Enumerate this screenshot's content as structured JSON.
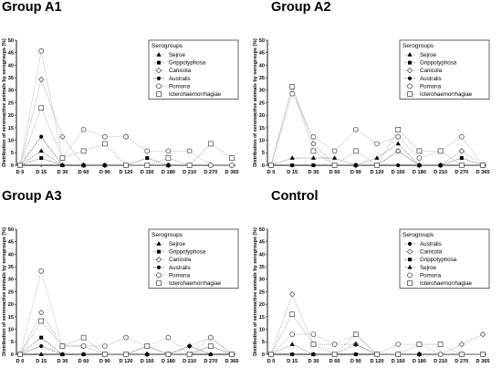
{
  "chart_data": [
    {
      "type": "line",
      "title": "Group A1",
      "ylabel": "Distribution of seroreactive animals by serogroups (%)",
      "xlabel": "",
      "categories": [
        "D 0",
        "D 15",
        "D 30",
        "D 60",
        "D 90",
        "D 120",
        "D 150",
        "D 180",
        "D 210",
        "D 270",
        "D 365"
      ],
      "ylim": [
        0,
        50
      ],
      "yticks": [
        0,
        5,
        10,
        15,
        20,
        25,
        30,
        35,
        40,
        45,
        50
      ],
      "legend_title": "Serogroups",
      "legend_position": "top-right",
      "series": [
        {
          "name": "Sejroe",
          "marker": "triangle",
          "color": "#555555",
          "values": [
            0,
            5.7,
            0,
            0,
            0,
            0,
            0,
            0,
            0,
            0,
            0
          ]
        },
        {
          "name": "Grippotyphosa",
          "marker": "square",
          "color": "#333333",
          "values": [
            0,
            2.9,
            0,
            0,
            0,
            0,
            2.9,
            0,
            0,
            0,
            0
          ]
        },
        {
          "name": "Canicola",
          "marker": "diamond-open",
          "color": "#888888",
          "values": [
            0,
            34.3,
            11.4,
            0,
            0,
            0,
            0,
            0,
            0,
            0,
            0
          ]
        },
        {
          "name": "Australis",
          "marker": "circle",
          "color": "#222222",
          "values": [
            0,
            11.4,
            0,
            0,
            0,
            0,
            0,
            0,
            0,
            0,
            0
          ]
        },
        {
          "name": "Pomona",
          "marker": "circle-open",
          "color": "#999999",
          "values": [
            0,
            45.7,
            2.9,
            14.3,
            11.4,
            11.4,
            5.7,
            5.7,
            5.7,
            0,
            0
          ]
        },
        {
          "name": "Icterohaemorrhagiae",
          "marker": "square-open",
          "color": "#888888",
          "values": [
            0,
            22.9,
            2.9,
            5.7,
            8.6,
            0,
            0,
            2.9,
            0,
            8.6,
            2.9
          ]
        }
      ]
    },
    {
      "type": "line",
      "title": "Group A2",
      "ylabel": "Distribution of seroreactive animals by serogroups (%)",
      "xlabel": "",
      "categories": [
        "D 0",
        "D 15",
        "D 30",
        "D 60",
        "D 90",
        "D 120",
        "D 150",
        "D 180",
        "D 210",
        "D 270",
        "D 365"
      ],
      "ylim": [
        0,
        50
      ],
      "yticks": [
        0,
        5,
        10,
        15,
        20,
        25,
        30,
        35,
        40,
        45,
        50
      ],
      "legend_title": "Serogroups",
      "legend_position": "top-right",
      "series": [
        {
          "name": "Sejroe",
          "marker": "triangle",
          "color": "#555555",
          "values": [
            0,
            2.9,
            2.9,
            2.9,
            0,
            2.9,
            8.6,
            0,
            0,
            0,
            0
          ]
        },
        {
          "name": "Grippotyphosa",
          "marker": "square",
          "color": "#333333",
          "values": [
            0,
            0,
            0,
            0,
            0,
            0,
            5.7,
            0,
            0,
            2.9,
            0
          ]
        },
        {
          "name": "Canicola",
          "marker": "diamond-open",
          "color": "#888888",
          "values": [
            0,
            31.4,
            8.6,
            0,
            0,
            0,
            5.7,
            0,
            0,
            5.7,
            0
          ]
        },
        {
          "name": "Australis",
          "marker": "circle",
          "color": "#222222",
          "values": [
            0,
            0,
            0,
            0,
            0,
            0,
            0,
            0,
            0,
            0,
            0
          ]
        },
        {
          "name": "Pomona",
          "marker": "circle-open",
          "color": "#999999",
          "values": [
            0,
            28.6,
            11.4,
            5.7,
            14.3,
            8.6,
            11.4,
            2.9,
            5.7,
            11.4,
            0
          ]
        },
        {
          "name": "Icterohaemorrhagiae",
          "marker": "square-open",
          "color": "#888888",
          "values": [
            0,
            31.4,
            5.7,
            0,
            5.7,
            0,
            14.3,
            5.7,
            5.7,
            0,
            0
          ]
        }
      ]
    },
    {
      "type": "line",
      "title": "Group A3",
      "ylabel": "Distribution of seroreactive animals by serogroups (%)",
      "xlabel": "",
      "categories": [
        "D 0",
        "D 15",
        "D 30",
        "D 60",
        "D 90",
        "D 120",
        "D 150",
        "D 180",
        "D 210",
        "D 270",
        "D 365"
      ],
      "ylim": [
        0,
        50
      ],
      "yticks": [
        0,
        5,
        10,
        15,
        20,
        25,
        30,
        35,
        40,
        45,
        50
      ],
      "legend_title": "Serogroups",
      "legend_position": "top-right",
      "series": [
        {
          "name": "Sejroe",
          "marker": "triangle",
          "color": "#555555",
          "values": [
            0,
            0,
            0,
            0,
            0,
            0,
            0,
            0,
            0,
            0,
            0
          ]
        },
        {
          "name": "Grippotyphosa",
          "marker": "square",
          "color": "#333333",
          "values": [
            0,
            6.7,
            0,
            0,
            0,
            0,
            3.3,
            0,
            0,
            3.3,
            0
          ]
        },
        {
          "name": "Canicola",
          "marker": "diamond-open",
          "color": "#888888",
          "values": [
            0,
            16.7,
            3.3,
            3.3,
            0,
            0,
            0,
            0,
            3.3,
            6.7,
            0
          ]
        },
        {
          "name": "Australis",
          "marker": "circle",
          "color": "#222222",
          "values": [
            0,
            3.3,
            0,
            0,
            0,
            0,
            0,
            0,
            3.3,
            0,
            0
          ]
        },
        {
          "name": "Pomona",
          "marker": "circle-open",
          "color": "#999999",
          "values": [
            0,
            33.3,
            3.3,
            3.3,
            3.3,
            6.7,
            3.3,
            6.7,
            0,
            6.7,
            0
          ]
        },
        {
          "name": "Icterohaemorrhagiae",
          "marker": "square-open",
          "color": "#888888",
          "values": [
            0,
            13.3,
            3.3,
            6.7,
            0,
            0,
            3.3,
            0,
            0,
            3.3,
            0
          ]
        }
      ]
    },
    {
      "type": "line",
      "title": "Control",
      "ylabel": "Distribution of seroreactive animals by serogroups (%)",
      "xlabel": "",
      "categories": [
        "D 0",
        "D 15",
        "D 30",
        "D 60",
        "D 90",
        "D 120",
        "D 150",
        "D 180",
        "D 210",
        "D 270",
        "D 365"
      ],
      "ylim": [
        0,
        50
      ],
      "yticks": [
        0,
        5,
        10,
        15,
        20,
        25,
        30,
        35,
        40,
        45,
        50
      ],
      "legend_title": "Serogroups",
      "legend_position": "top-right",
      "series": [
        {
          "name": "Australis",
          "marker": "circle",
          "color": "#222222",
          "values": [
            0,
            0,
            0,
            0,
            0,
            0,
            0,
            0,
            0,
            0,
            0
          ]
        },
        {
          "name": "Canicola",
          "marker": "diamond-open",
          "color": "#888888",
          "values": [
            0,
            24,
            4,
            4,
            4,
            0,
            0,
            0,
            0,
            4,
            8
          ]
        },
        {
          "name": "Grippotyphosa",
          "marker": "square",
          "color": "#333333",
          "values": [
            0,
            0,
            0,
            0,
            0,
            0,
            0,
            0,
            0,
            0,
            0
          ]
        },
        {
          "name": "Sejroe",
          "marker": "triangle",
          "color": "#555555",
          "values": [
            0,
            4,
            0,
            0,
            4,
            0,
            0,
            0,
            0,
            0,
            0
          ]
        },
        {
          "name": "Pomona",
          "marker": "circle-open",
          "color": "#999999",
          "values": [
            0,
            8,
            8,
            4,
            8,
            0,
            4,
            4,
            0,
            0,
            0
          ]
        },
        {
          "name": "Icterohaemorrhagiae",
          "marker": "square-open",
          "color": "#888888",
          "values": [
            0,
            16,
            4,
            0,
            8,
            0,
            0,
            4,
            4,
            0,
            0
          ]
        }
      ]
    }
  ]
}
